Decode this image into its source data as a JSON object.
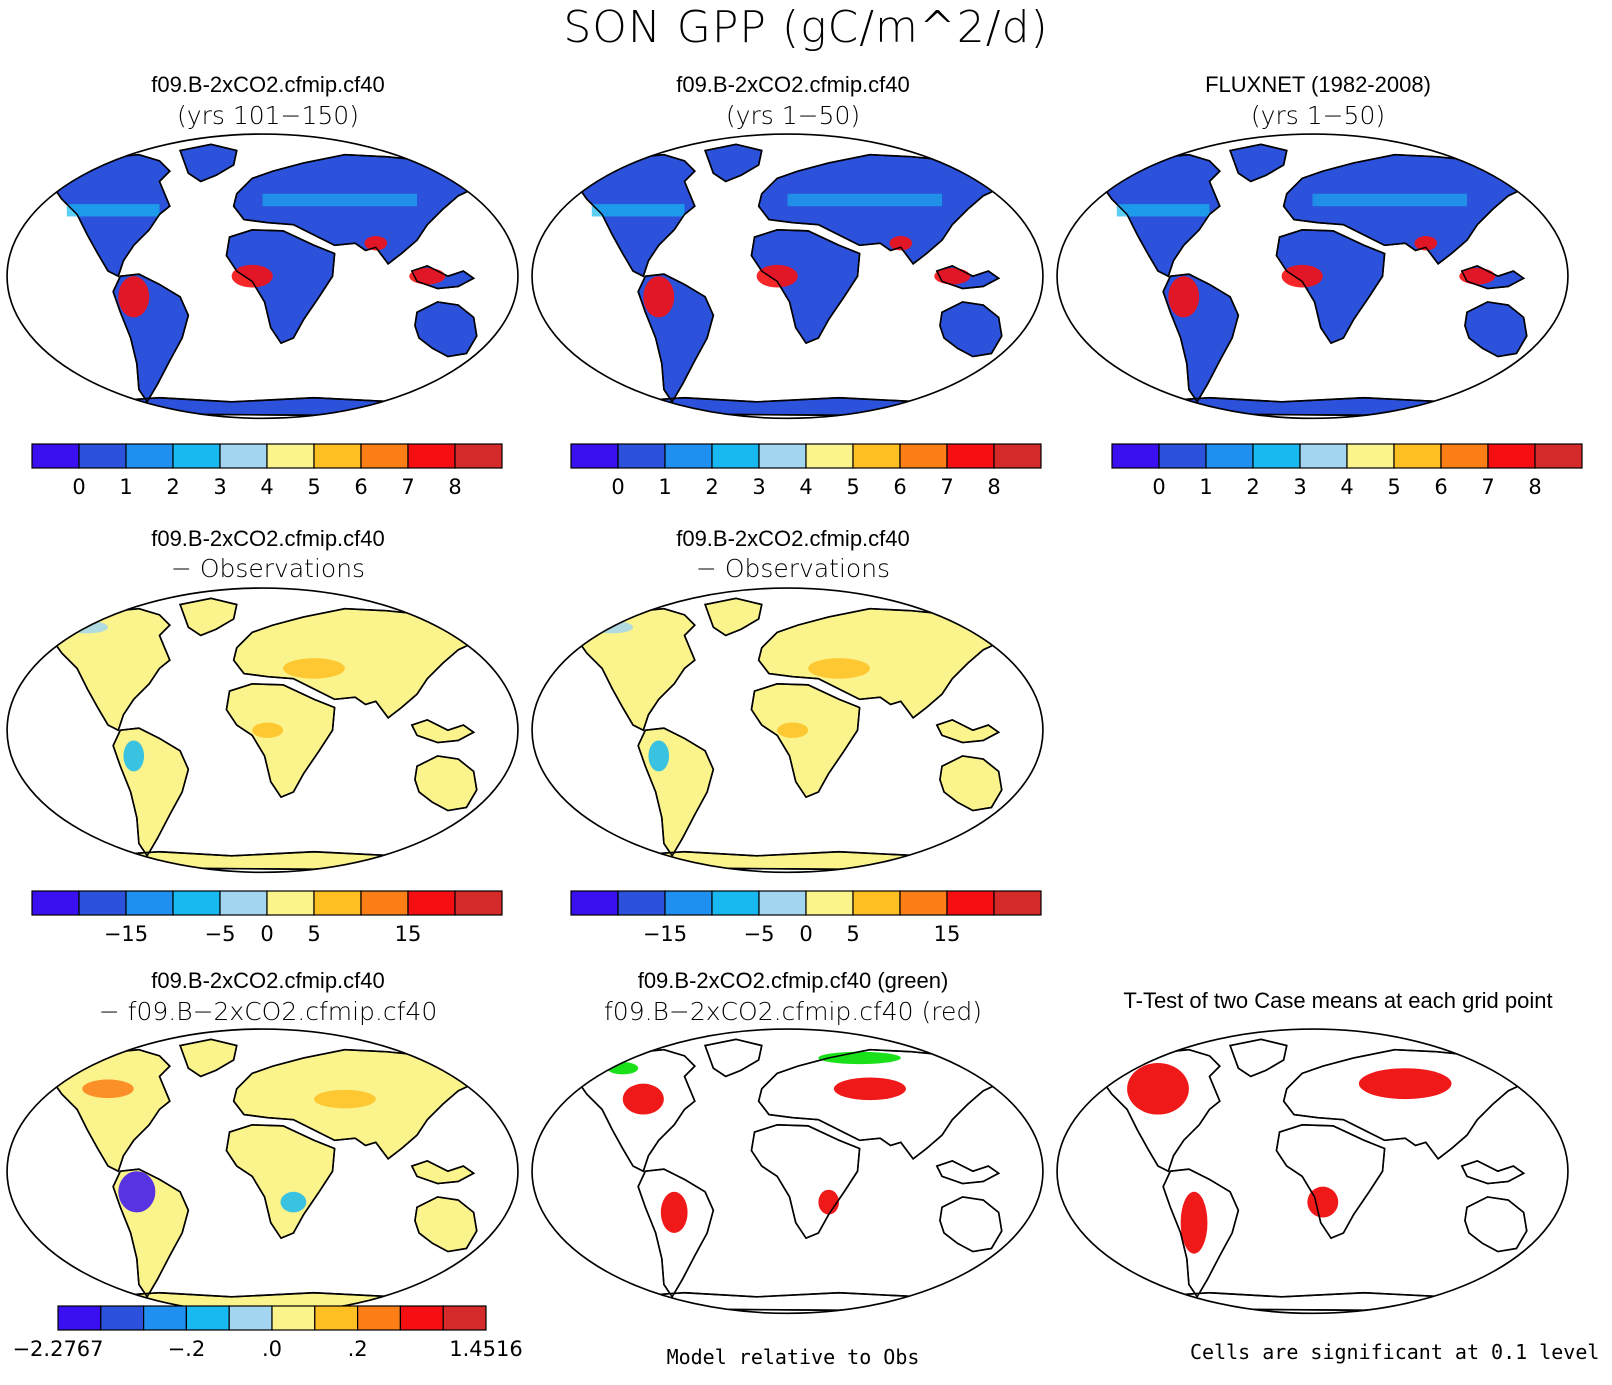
{
  "figure_title": "SON GPP (gC/m^2/d)",
  "panels": [
    {
      "id": "p1",
      "title": "f09.B-2xCO2.cfmip.cf40",
      "subtitle": "(yrs 101−150)",
      "map": "absolute"
    },
    {
      "id": "p2",
      "title": "f09.B-2xCO2.cfmip.cf40",
      "subtitle": "(yrs 1−50)",
      "map": "absolute"
    },
    {
      "id": "p3",
      "title": "FLUXNET (1982-2008)",
      "subtitle": "(yrs 1−50)",
      "map": "observed"
    },
    {
      "id": "p4",
      "title": "f09.B-2xCO2.cfmip.cf40",
      "subtitle": "− Observations",
      "map": "difference"
    },
    {
      "id": "p5",
      "title": "f09.B-2xCO2.cfmip.cf40",
      "subtitle": "− Observations",
      "map": "difference"
    },
    {
      "id": "p7",
      "title": "f09.B-2xCO2.cfmip.cf40",
      "subtitle": "− f09.B−2xCO2.cfmip.cf40",
      "map": "model-diff"
    },
    {
      "id": "p8",
      "title": "f09.B-2xCO2.cfmip.cf40 (green)",
      "subtitle": "f09.B−2xCO2.cfmip.cf40 (red)",
      "map": "relative"
    },
    {
      "id": "p9",
      "title": "T-Test of two Case means at each grid point",
      "subtitle": "",
      "map": "ttest"
    }
  ],
  "notes": {
    "model_relative": "Model relative to Obs",
    "ttest": "Cells are significant at 0.1 level"
  },
  "colors": [
    "#3a10f0",
    "#2c52dc",
    "#1f8ff0",
    "#18b9f0",
    "#a3d5f0",
    "#fbf38c",
    "#fdbf22",
    "#fc7e16",
    "#f50f12",
    "#d42a2a"
  ],
  "colorbars": {
    "absolute": {
      "labels": [
        "0",
        "1",
        "2",
        "3",
        "4",
        "5",
        "6",
        "7",
        "8"
      ]
    },
    "difference": {
      "labels": [
        "−15",
        "−5",
        "0",
        "5",
        "15"
      ]
    },
    "model_diff": {
      "labels": [
        "−2.2767",
        "−.2",
        ".0",
        ".2",
        "1.4516"
      ]
    }
  },
  "icons": {
    "map_projection": "robinson-globe-outline",
    "continents": "land-outline"
  }
}
